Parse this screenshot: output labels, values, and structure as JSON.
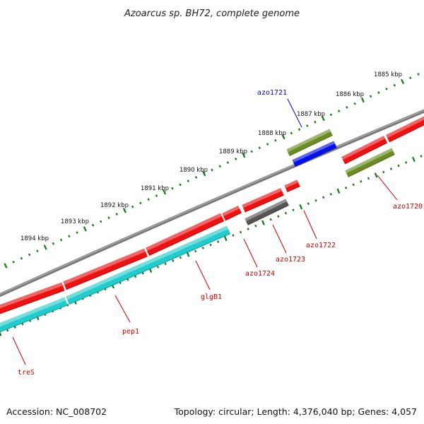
{
  "title": "Azoarcus sp. BH72, complete genome",
  "footer": {
    "accession": "Accession: NC_008702",
    "topology": "Topology: circular; Length: 4,376,040 bp; Genes: 4,057"
  },
  "colors": {
    "forward_cds": "#ee1111",
    "reverse_cds": "#22cccc",
    "rna": "#0011ee",
    "olive": "#6b8e23",
    "pseudo": "#555555",
    "backbone": "#888888",
    "tick": "#117711",
    "red_label": "#cc0000",
    "blue_label": "#0000cc"
  },
  "scale_ticks": [
    "1885 kbp",
    "1886 kbp",
    "1887 kbp",
    "1888 kbp",
    "1889 kbp",
    "1890 kbp",
    "1891 kbp",
    "1892 kbp",
    "1893 kbp",
    "1894 kbp"
  ],
  "gene_labels": [
    {
      "name": "azo1721",
      "color": "blue"
    },
    {
      "name": "azo1720",
      "color": "red"
    },
    {
      "name": "azo1722",
      "color": "red"
    },
    {
      "name": "azo1723",
      "color": "red"
    },
    {
      "name": "azo1724",
      "color": "red"
    },
    {
      "name": "glgB1",
      "color": "red"
    },
    {
      "name": "pep1",
      "color": "red"
    },
    {
      "name": "treS",
      "color": "red"
    }
  ]
}
